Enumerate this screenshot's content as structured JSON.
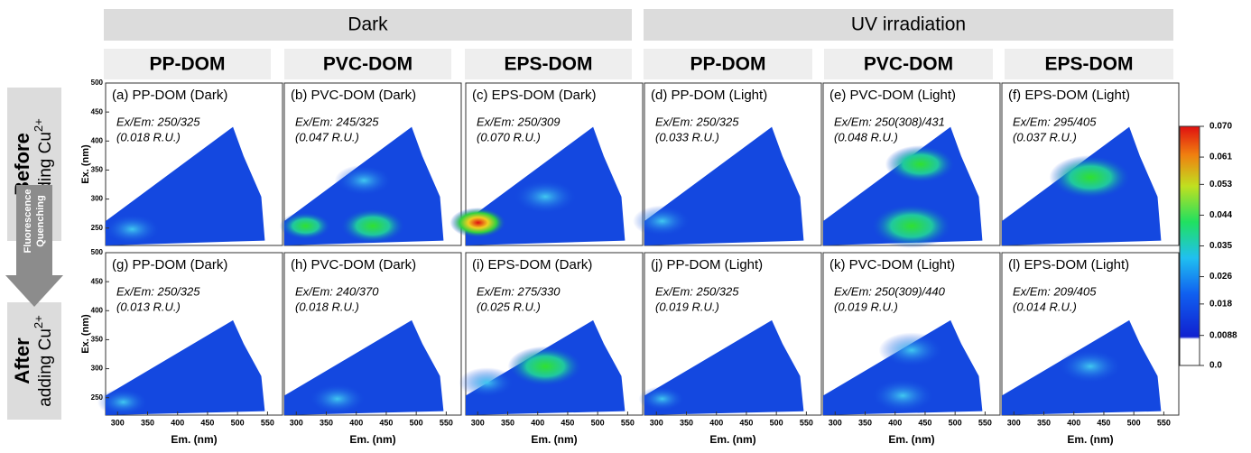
{
  "groups": [
    {
      "title": "Dark"
    },
    {
      "title": "UV irradiation"
    }
  ],
  "columns": [
    "PP-DOM",
    "PVC-DOM",
    "EPS-DOM",
    "PP-DOM",
    "PVC-DOM",
    "EPS-DOM"
  ],
  "rows": [
    {
      "title": "Before",
      "sub": "adding Cu",
      "sup": "2+"
    },
    {
      "title": "After",
      "sub": "adding Cu",
      "sup": "2+"
    }
  ],
  "arrow_label": [
    "Fluorescence",
    "Quenching"
  ],
  "panels": [
    [
      {
        "label": "(a) PP-DOM (Dark)",
        "peak": "Ex/Em: 250/325",
        "intensity": "(0.018 R.U.)"
      },
      {
        "label": "(b) PVC-DOM (Dark)",
        "peak": "Ex/Em: 245/325",
        "intensity": "(0.047 R.U.)"
      },
      {
        "label": "(c) EPS-DOM (Dark)",
        "peak": "Ex/Em: 250/309",
        "intensity": "(0.070 R.U.)"
      },
      {
        "label": "(d) PP-DOM (Light)",
        "peak": "Ex/Em: 250/325",
        "intensity": "(0.033 R.U.)"
      },
      {
        "label": "(e) PVC-DOM (Light)",
        "peak": "Ex/Em: 250(308)/431",
        "intensity": "(0.048 R.U.)"
      },
      {
        "label": "(f) EPS-DOM (Light)",
        "peak": "Ex/Em: 295/405",
        "intensity": "(0.037 R.U.)"
      }
    ],
    [
      {
        "label": "(g) PP-DOM (Dark)",
        "peak": "Ex/Em: 250/325",
        "intensity": "(0.013 R.U.)"
      },
      {
        "label": "(h) PVC-DOM (Dark)",
        "peak": "Ex/Em: 240/370",
        "intensity": "(0.018 R.U.)"
      },
      {
        "label": "(i) EPS-DOM (Dark)",
        "peak": "Ex/Em: 275/330",
        "intensity": "(0.025 R.U.)"
      },
      {
        "label": "(j) PP-DOM (Light)",
        "peak": "Ex/Em: 250/325",
        "intensity": "(0.019 R.U.)"
      },
      {
        "label": "(k) PVC-DOM (Light)",
        "peak": "Ex/Em: 250(309)/440",
        "intensity": "(0.019 R.U.)"
      },
      {
        "label": "(l) EPS-DOM (Light)",
        "peak": "Ex/Em: 209/405",
        "intensity": "(0.014 R.U.)"
      }
    ]
  ],
  "axes": {
    "xlabel": "Em. (nm)",
    "ylabel": "Ex. (nm)",
    "xlim": [
      280,
      575
    ],
    "ylim": [
      220,
      500
    ],
    "xticks": [
      300,
      350,
      400,
      450,
      500,
      550
    ],
    "yticks": [
      250,
      300,
      350,
      400,
      450,
      500
    ]
  },
  "colorbar": {
    "clim": [
      0,
      0.07
    ],
    "ticks": [
      {
        "value": 0.07,
        "label": "0.070"
      },
      0.061,
      0.053,
      0.044,
      0.035,
      0.026,
      0.018,
      0.0088,
      {
        "value": 0,
        "label": "0.0"
      }
    ]
  }
}
